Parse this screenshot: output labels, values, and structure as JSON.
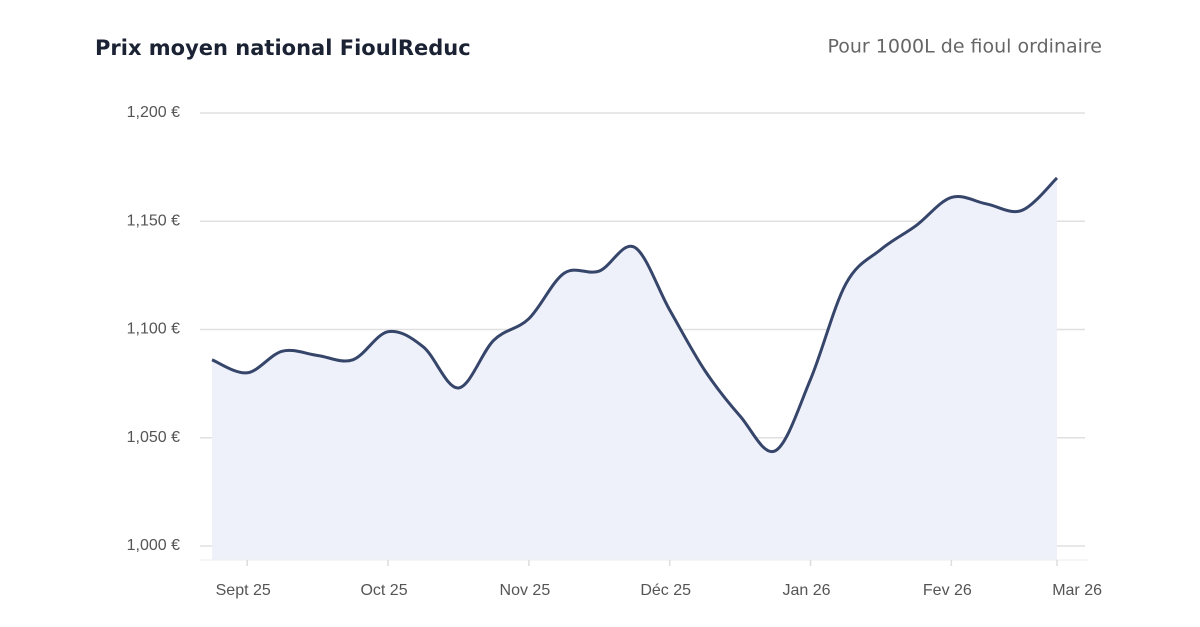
{
  "chart_data": {
    "type": "area",
    "title": "Prix moyen national FioulReduc",
    "subtitle": "Pour 1000L de fioul ordinaire",
    "categories": [
      null,
      "Sept 25",
      null,
      null,
      null,
      "Oct 25",
      null,
      null,
      null,
      "Nov 25",
      null,
      null,
      null,
      "Déc 25",
      null,
      null,
      null,
      "Jan 26",
      null,
      null,
      null,
      "Fev 26",
      null,
      null,
      "Mar 26"
    ],
    "series": [
      {
        "name": "Prix moyen",
        "color": "#36456a",
        "fill": "#eef1fa",
        "values": [
          1086,
          1080,
          1090,
          1088,
          1086,
          1099,
          1092,
          1073,
          1095,
          1105,
          1126,
          1127,
          1138,
          1109,
          1081,
          1060,
          1044,
          1077,
          1121,
          1137,
          1148,
          1161,
          1158,
          1155,
          1170
        ]
      }
    ],
    "ylim": [
      1000,
      1200
    ],
    "yticks": [
      {
        "value": 1000,
        "label": "1,000 €"
      },
      {
        "value": 1050,
        "label": "1,050 €"
      },
      {
        "value": 1100,
        "label": "1,100 €"
      },
      {
        "value": 1150,
        "label": "1,150 €"
      },
      {
        "value": 1200,
        "label": "1,200 €"
      }
    ],
    "grid": true
  }
}
